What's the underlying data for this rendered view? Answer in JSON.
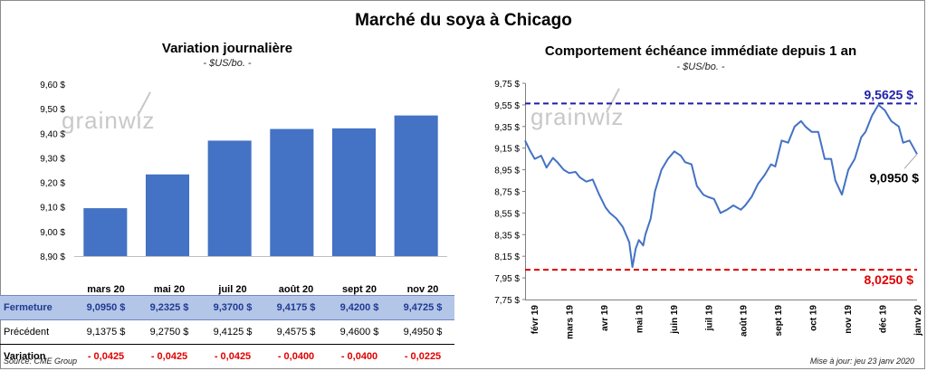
{
  "title": "Marché du soya à Chicago",
  "source": "Source: CME Group",
  "updated": "Mise à jour: jeu 23 janv 2020",
  "watermark": "grainwiz",
  "chart_data": [
    {
      "type": "bar",
      "title": "Variation journalière",
      "unit": "- $US/bo. -",
      "categories": [
        "mars 20",
        "mai 20",
        "juil 20",
        "août 20",
        "sept 20",
        "nov 20"
      ],
      "values": [
        9.095,
        9.2325,
        9.37,
        9.4175,
        9.42,
        9.4725
      ],
      "ylim": [
        8.9,
        9.6
      ],
      "yticks": [
        "8,90 $",
        "9,00 $",
        "9,10 $",
        "9,20 $",
        "9,30 $",
        "9,40 $",
        "9,50 $",
        "9,60 $"
      ],
      "color": "#4472c4"
    },
    {
      "type": "line",
      "title": "Comportement échéance immédiate depuis 1 an",
      "unit": "- $US/bo. -",
      "ylim": [
        7.75,
        9.75
      ],
      "yticks": [
        "7,75 $",
        "7,95 $",
        "8,15 $",
        "8,35 $",
        "8,55 $",
        "8,75 $",
        "8,95 $",
        "9,15 $",
        "9,35 $",
        "9,55 $",
        "9,75 $"
      ],
      "xticks": [
        "févr 19",
        "mars 19",
        "avr 19",
        "mai 19",
        "juin 19",
        "juil 19",
        "août 19",
        "sept 19",
        "oct 19",
        "nov 19",
        "déc 19",
        "janv 20"
      ],
      "x": [
        "2019-01-23",
        "2019-01-28",
        "2019-02-01",
        "2019-02-07",
        "2019-02-12",
        "2019-02-18",
        "2019-02-22",
        "2019-02-28",
        "2019-03-05",
        "2019-03-11",
        "2019-03-15",
        "2019-03-21",
        "2019-03-27",
        "2019-04-02",
        "2019-04-08",
        "2019-04-12",
        "2019-04-18",
        "2019-04-24",
        "2019-04-30",
        "2019-05-03",
        "2019-05-06",
        "2019-05-09",
        "2019-05-13",
        "2019-05-15",
        "2019-05-20",
        "2019-05-24",
        "2019-05-30",
        "2019-06-05",
        "2019-06-11",
        "2019-06-17",
        "2019-06-21",
        "2019-06-27",
        "2019-07-02",
        "2019-07-08",
        "2019-07-12",
        "2019-07-18",
        "2019-07-24",
        "2019-07-30",
        "2019-08-05",
        "2019-08-12",
        "2019-08-16",
        "2019-08-22",
        "2019-08-28",
        "2019-09-03",
        "2019-09-09",
        "2019-09-13",
        "2019-09-19",
        "2019-09-25",
        "2019-10-01",
        "2019-10-07",
        "2019-10-11",
        "2019-10-17",
        "2019-10-23",
        "2019-10-29",
        "2019-11-04",
        "2019-11-08",
        "2019-11-14",
        "2019-11-20",
        "2019-11-26",
        "2019-12-02",
        "2019-12-06",
        "2019-12-12",
        "2019-12-18",
        "2019-12-24",
        "2019-12-30",
        "2020-01-06",
        "2020-01-10",
        "2020-01-16",
        "2020-01-23"
      ],
      "series": [
        {
          "values": [
            9.22,
            9.12,
            9.05,
            9.08,
            8.97,
            9.06,
            9.02,
            8.95,
            8.92,
            8.93,
            8.88,
            8.84,
            8.86,
            8.72,
            8.6,
            8.55,
            8.5,
            8.42,
            8.28,
            8.05,
            8.22,
            8.3,
            8.25,
            8.35,
            8.5,
            8.75,
            8.95,
            9.05,
            9.12,
            9.08,
            9.02,
            9.0,
            8.8,
            8.72,
            8.7,
            8.68,
            8.55,
            8.58,
            8.62,
            8.58,
            8.62,
            8.7,
            8.82,
            8.9,
            9.0,
            8.98,
            9.22,
            9.2,
            9.35,
            9.4,
            9.35,
            9.3,
            9.3,
            9.05,
            9.05,
            8.85,
            8.72,
            8.95,
            9.05,
            9.25,
            9.3,
            9.45,
            9.55,
            9.5,
            9.4,
            9.35,
            9.2,
            9.22,
            9.095
          ],
          "color": "#4472c4"
        }
      ],
      "lines": [
        {
          "value": 9.5625,
          "label": "9,5625 $",
          "color": "#1f1fa8"
        },
        {
          "value": 8.025,
          "label": "8,0250 $",
          "color": "#e00000"
        }
      ],
      "last_label": "9,0950 $"
    }
  ],
  "table": {
    "headers": [
      "mars 20",
      "mai 20",
      "juil 20",
      "août 20",
      "sept 20",
      "nov 20"
    ],
    "rows": [
      {
        "label": "Fermeture",
        "values": [
          "9,0950  $",
          "9,2325  $",
          "9,3700  $",
          "9,4175  $",
          "9,4200  $",
          "9,4725  $"
        ]
      },
      {
        "label": "Précédent",
        "values": [
          "9,1375  $",
          "9,2750  $",
          "9,4125  $",
          "9,4575  $",
          "9,4600  $",
          "9,4950  $"
        ]
      },
      {
        "label": "Variation",
        "values": [
          "- 0,0425",
          "- 0,0425",
          "- 0,0425",
          "- 0,0400",
          "- 0,0400",
          "- 0,0225"
        ]
      }
    ]
  }
}
